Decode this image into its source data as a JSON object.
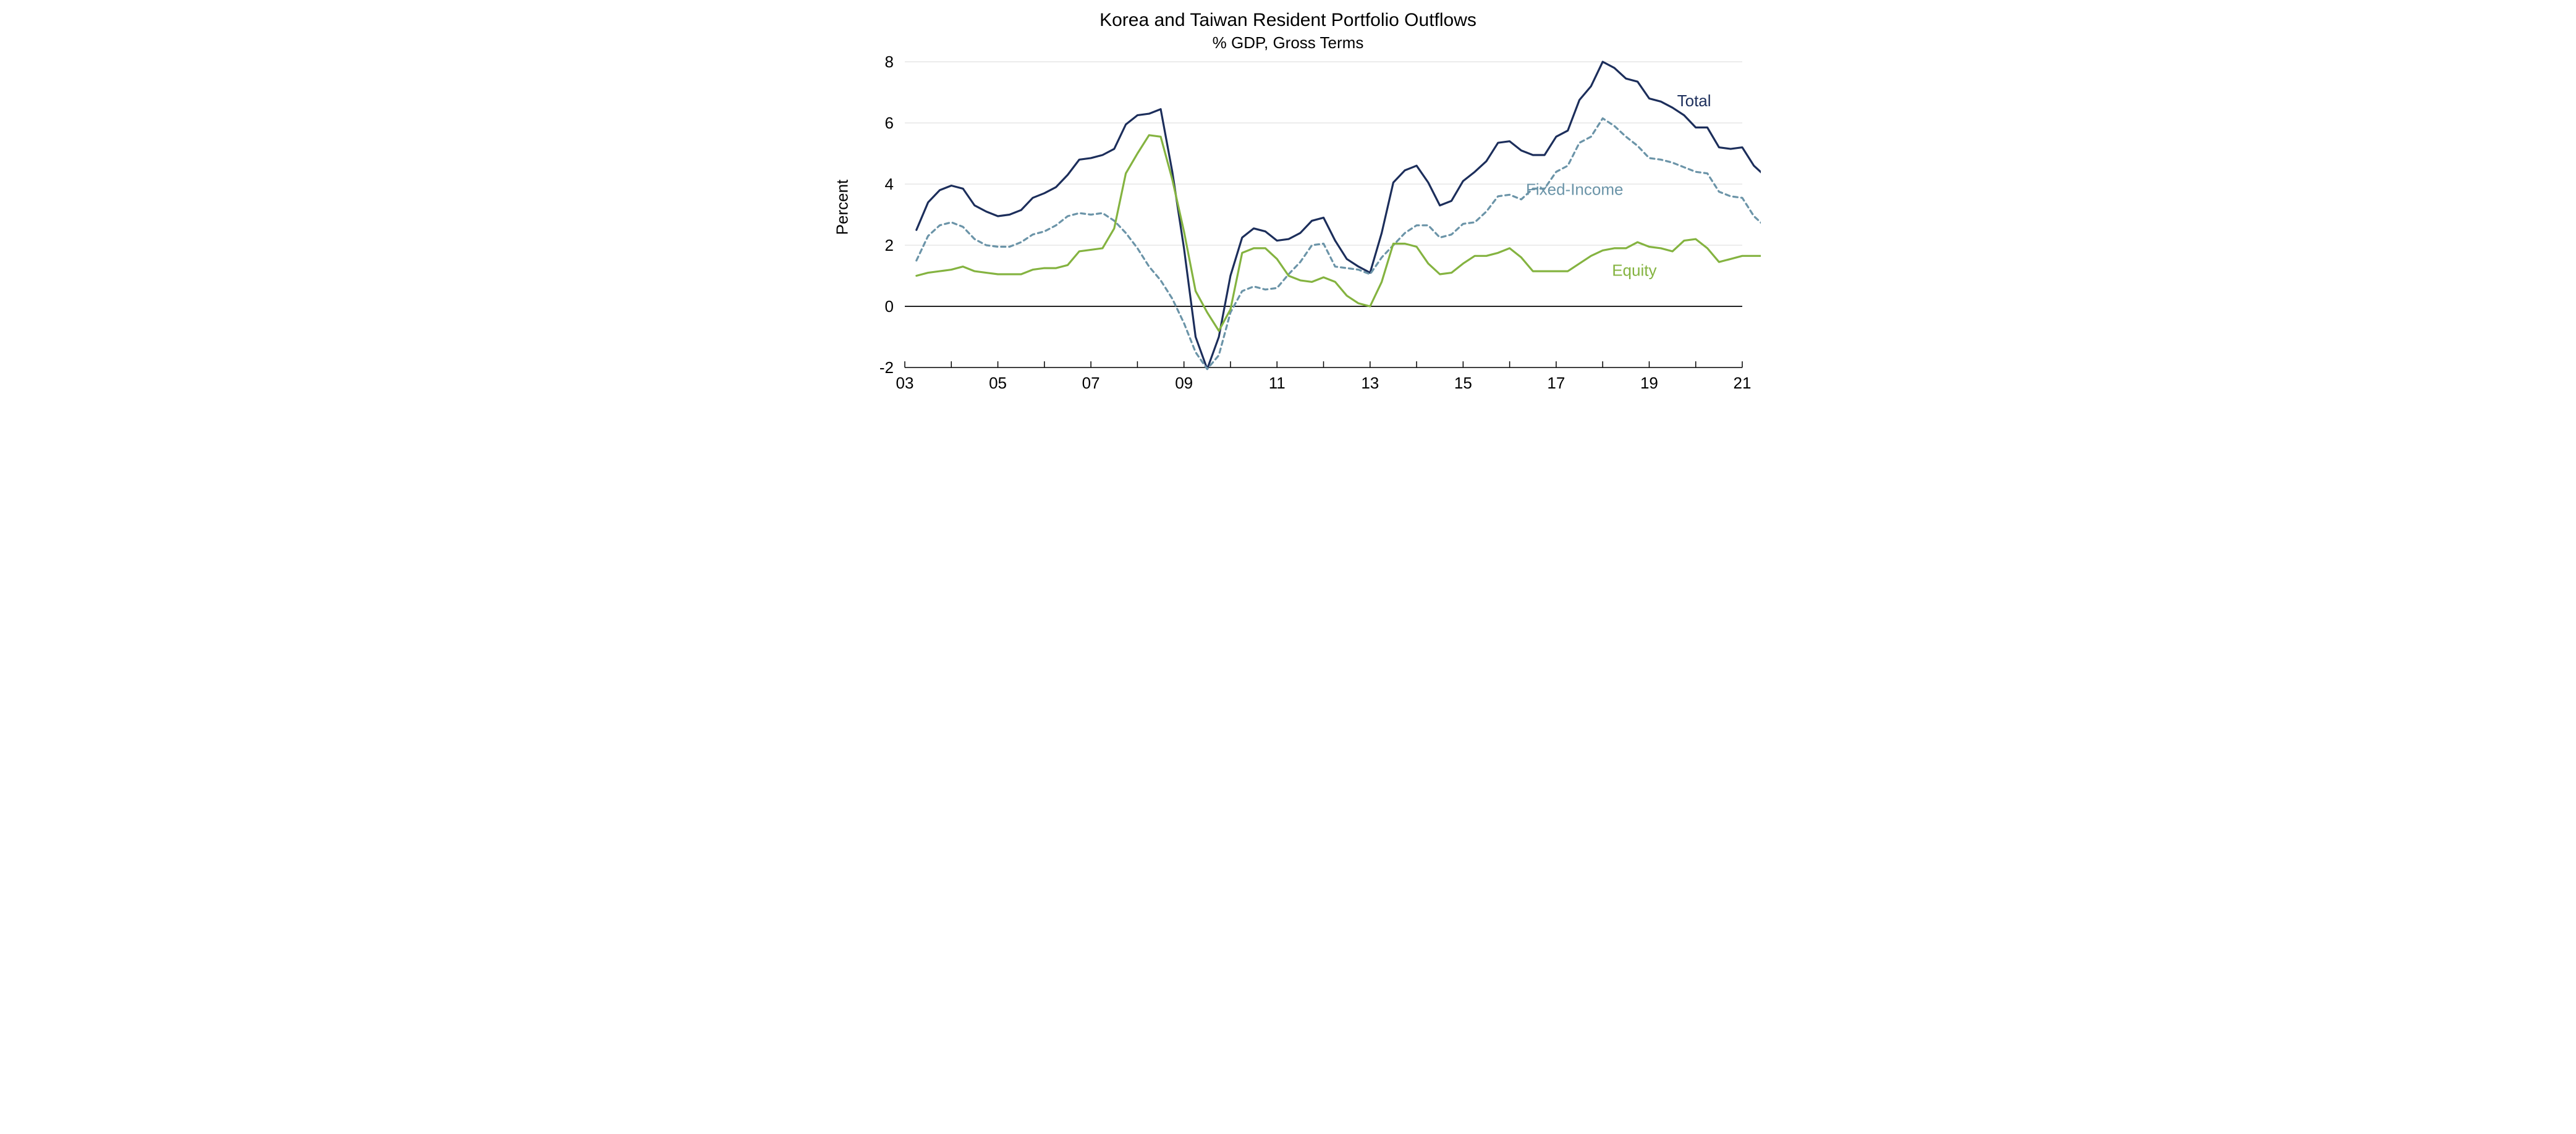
{
  "chart": {
    "type": "line",
    "title": "Korea and Taiwan Resident Portfolio Outflows",
    "subtitle": "% GDP, Gross Terms",
    "title_fontsize": 30,
    "subtitle_fontsize": 26,
    "y_axis_label": "Percent",
    "y_axis_label_fontsize": 26,
    "tick_fontsize": 26,
    "series_label_fontsize": 26,
    "background_color": "#ffffff",
    "grid_color": "#d9d9d9",
    "axis_color": "#000000",
    "zero_line_color": "#000000",
    "xlim": [
      2003,
      2021
    ],
    "ylim": [
      -2,
      8
    ],
    "ytick_step": 2,
    "yticks": [
      -2,
      0,
      2,
      4,
      6,
      8
    ],
    "xticks": [
      2003,
      2005,
      2007,
      2009,
      2011,
      2013,
      2015,
      2017,
      2019,
      2021
    ],
    "xtick_labels": [
      "03",
      "05",
      "07",
      "09",
      "11",
      "13",
      "15",
      "17",
      "19",
      "21"
    ],
    "x_values_quarterly_start": 2003.25,
    "x_step": 0.25,
    "line_width": 3.2,
    "series": [
      {
        "name": "Total",
        "label": "Total",
        "color": "#1c2e5b",
        "dash": "none",
        "label_x": 2019.6,
        "label_y": 6.55,
        "values": [
          2.5,
          3.4,
          3.8,
          3.95,
          3.85,
          3.3,
          3.1,
          2.95,
          3.0,
          3.15,
          3.55,
          3.7,
          3.9,
          4.3,
          4.8,
          4.85,
          4.95,
          5.15,
          5.95,
          6.25,
          6.3,
          6.45,
          4.4,
          1.9,
          -1.0,
          -2.05,
          -1.0,
          1.0,
          2.25,
          2.55,
          2.45,
          2.15,
          2.2,
          2.4,
          2.8,
          2.9,
          2.15,
          1.55,
          1.3,
          1.1,
          2.4,
          4.05,
          4.45,
          4.6,
          4.05,
          3.3,
          3.45,
          4.1,
          4.4,
          4.75,
          5.35,
          5.4,
          5.1,
          4.95,
          4.95,
          5.55,
          5.75,
          6.75,
          7.2,
          8.0,
          7.8,
          7.45,
          7.35,
          6.8,
          6.7,
          6.5,
          6.25,
          5.85,
          5.85,
          5.2,
          5.15,
          5.2,
          4.6,
          4.25,
          4.4
        ]
      },
      {
        "name": "Fixed-Income",
        "label": "Fixed-Income",
        "color": "#6b94a8",
        "dash": "7,6",
        "label_x": 2016.35,
        "label_y": 3.65,
        "values": [
          1.5,
          2.3,
          2.65,
          2.75,
          2.6,
          2.2,
          2.0,
          1.95,
          1.95,
          2.1,
          2.35,
          2.45,
          2.65,
          2.95,
          3.05,
          3.0,
          3.05,
          2.8,
          2.4,
          1.9,
          1.3,
          0.85,
          0.25,
          -0.55,
          -1.5,
          -2.05,
          -1.6,
          -0.2,
          0.5,
          0.65,
          0.55,
          0.6,
          1.05,
          1.45,
          2.0,
          2.05,
          1.3,
          1.25,
          1.2,
          1.05,
          1.6,
          2.0,
          2.4,
          2.65,
          2.65,
          2.25,
          2.35,
          2.7,
          2.75,
          3.1,
          3.6,
          3.65,
          3.5,
          3.85,
          3.85,
          4.4,
          4.6,
          5.35,
          5.55,
          6.15,
          5.9,
          5.55,
          5.25,
          4.85,
          4.8,
          4.7,
          4.55,
          4.4,
          4.35,
          3.75,
          3.6,
          3.55,
          2.95,
          2.6,
          1.95
        ]
      },
      {
        "name": "Equity",
        "label": "Equity",
        "color": "#84b340",
        "dash": "none",
        "label_x": 2018.2,
        "label_y": 1.0,
        "values": [
          1.0,
          1.1,
          1.15,
          1.2,
          1.3,
          1.15,
          1.1,
          1.05,
          1.05,
          1.05,
          1.2,
          1.25,
          1.25,
          1.35,
          1.8,
          1.85,
          1.9,
          2.55,
          4.35,
          5.0,
          5.6,
          5.55,
          4.15,
          2.45,
          0.5,
          -0.2,
          -0.8,
          -0.1,
          1.75,
          1.9,
          1.9,
          1.55,
          1.0,
          0.85,
          0.8,
          0.95,
          0.8,
          0.35,
          0.1,
          0.0,
          0.8,
          2.05,
          2.05,
          1.95,
          1.4,
          1.05,
          1.1,
          1.4,
          1.65,
          1.65,
          1.75,
          1.9,
          1.6,
          1.15,
          1.15,
          1.15,
          1.15,
          1.4,
          1.65,
          1.83,
          1.9,
          1.9,
          2.1,
          1.95,
          1.9,
          1.8,
          2.15,
          2.2,
          1.9,
          1.45,
          1.55,
          1.65,
          1.65,
          1.65,
          2.45
        ]
      }
    ]
  }
}
